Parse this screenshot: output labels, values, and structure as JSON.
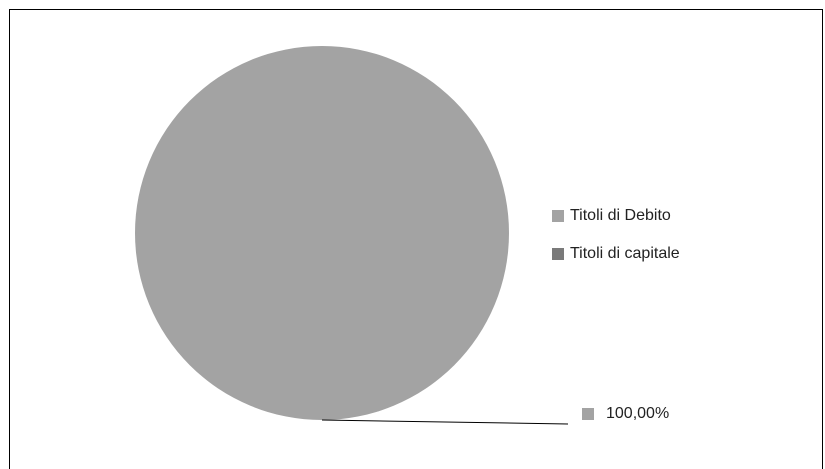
{
  "chart_data": {
    "type": "pie",
    "categories": [
      "Titoli di Debito",
      "Titoli di capitale"
    ],
    "values": [
      100,
      0
    ],
    "colors": [
      "#a3a3a3",
      "#7a7a7a"
    ],
    "data_labels": [
      "100,00%"
    ],
    "legend_position": "right"
  }
}
